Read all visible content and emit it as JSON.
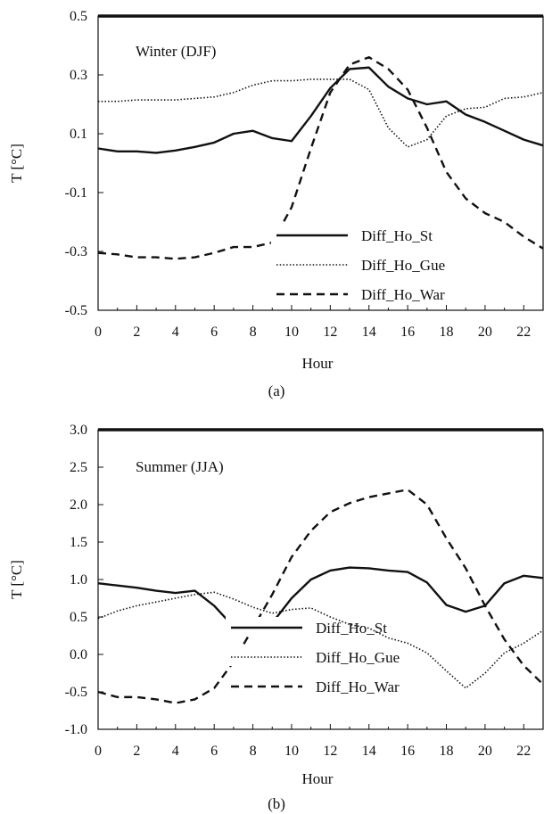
{
  "chart_data": [
    {
      "type": "line",
      "title": "Winter (DJF)",
      "caption": "(a)",
      "xlabel": "Hour",
      "ylabel": "T [°C]",
      "xlim": [
        0,
        23
      ],
      "ylim": [
        -0.5,
        0.5
      ],
      "x": [
        0,
        1,
        2,
        3,
        4,
        5,
        6,
        7,
        8,
        9,
        10,
        11,
        12,
        13,
        14,
        15,
        16,
        17,
        18,
        19,
        20,
        21,
        22,
        23
      ],
      "xticks": [
        "0",
        "2",
        "4",
        "6",
        "8",
        "10",
        "12",
        "14",
        "16",
        "18",
        "20",
        "22"
      ],
      "yticks": [
        "0.5",
        "0.3",
        "0.1",
        "-0.1",
        "-0.3",
        "-0.5"
      ],
      "legend_position": "lower-middle",
      "series": [
        {
          "name": "Diff_Ho_St",
          "style": "solid",
          "values": [
            0.05,
            0.04,
            0.04,
            0.035,
            0.043,
            0.055,
            0.07,
            0.1,
            0.11,
            0.085,
            0.075,
            0.16,
            0.255,
            0.32,
            0.325,
            0.26,
            0.22,
            0.2,
            0.21,
            0.165,
            0.14,
            0.11,
            0.08,
            0.06
          ]
        },
        {
          "name": "Diff_Ho_Gue",
          "style": "dotted",
          "values": [
            0.21,
            0.21,
            0.215,
            0.215,
            0.215,
            0.22,
            0.225,
            0.24,
            0.265,
            0.28,
            0.28,
            0.285,
            0.285,
            0.285,
            0.25,
            0.12,
            0.055,
            0.08,
            0.16,
            0.185,
            0.19,
            0.22,
            0.225,
            0.24
          ]
        },
        {
          "name": "Diff_Ho_War",
          "style": "dashed",
          "values": [
            -0.305,
            -0.31,
            -0.32,
            -0.32,
            -0.325,
            -0.32,
            -0.305,
            -0.285,
            -0.285,
            -0.27,
            -0.15,
            0.05,
            0.24,
            0.335,
            0.36,
            0.32,
            0.25,
            0.12,
            -0.03,
            -0.12,
            -0.17,
            -0.2,
            -0.25,
            -0.29
          ]
        }
      ]
    },
    {
      "type": "line",
      "title": "Summer (JJA)",
      "caption": "(b)",
      "xlabel": "Hour",
      "ylabel": "T [°C]",
      "xlim": [
        0,
        23
      ],
      "ylim": [
        -1.0,
        3.0
      ],
      "x": [
        0,
        1,
        2,
        3,
        4,
        5,
        6,
        7,
        8,
        9,
        10,
        11,
        12,
        13,
        14,
        15,
        16,
        17,
        18,
        19,
        20,
        21,
        22,
        23
      ],
      "xticks": [
        "0",
        "2",
        "4",
        "6",
        "8",
        "10",
        "12",
        "14",
        "16",
        "18",
        "20",
        "22"
      ],
      "yticks": [
        "3.0",
        "2.5",
        "2.0",
        "1.5",
        "1.0",
        "0.5",
        "0.0",
        "-0.5",
        "-1.0"
      ],
      "legend_position": "lower-middle",
      "series": [
        {
          "name": "Diff_Ho_St",
          "style": "solid",
          "values": [
            0.95,
            0.92,
            0.89,
            0.85,
            0.82,
            0.85,
            0.65,
            0.37,
            0.37,
            0.42,
            0.75,
            1.0,
            1.12,
            1.16,
            1.15,
            1.12,
            1.1,
            0.96,
            0.66,
            0.57,
            0.65,
            0.95,
            1.05,
            1.02
          ]
        },
        {
          "name": "Diff_Ho_Gue",
          "style": "dotted",
          "values": [
            0.48,
            0.58,
            0.65,
            0.7,
            0.75,
            0.8,
            0.83,
            0.74,
            0.63,
            0.55,
            0.6,
            0.62,
            0.5,
            0.4,
            0.35,
            0.22,
            0.15,
            0.02,
            -0.22,
            -0.45,
            -0.25,
            0.02,
            0.15,
            0.32
          ]
        },
        {
          "name": "Diff_Ho_War",
          "style": "dashed",
          "values": [
            -0.5,
            -0.57,
            -0.57,
            -0.6,
            -0.65,
            -0.6,
            -0.45,
            -0.1,
            0.35,
            0.8,
            1.3,
            1.65,
            1.9,
            2.02,
            2.1,
            2.15,
            2.2,
            2.0,
            1.55,
            1.15,
            0.65,
            0.2,
            -0.15,
            -0.4
          ]
        }
      ]
    }
  ]
}
